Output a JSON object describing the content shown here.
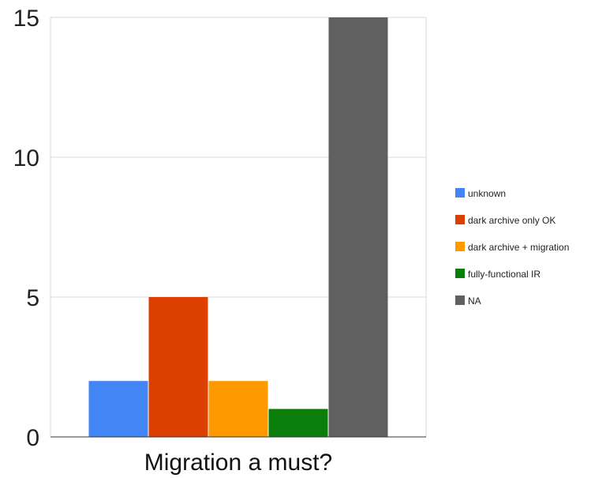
{
  "chart_data": {
    "type": "bar",
    "categories": [
      "Migration a must?"
    ],
    "series": [
      {
        "name": "unknown",
        "values": [
          2
        ],
        "color": "#4285f4"
      },
      {
        "name": "dark archive only OK",
        "values": [
          5
        ],
        "color": "#db4000"
      },
      {
        "name": "dark archive + migration",
        "values": [
          2
        ],
        "color": "#ff9900"
      },
      {
        "name": "fully-functional IR",
        "values": [
          1
        ],
        "color": "#0a7d0a"
      },
      {
        "name": "NA",
        "values": [
          15
        ],
        "color": "#606060"
      }
    ],
    "yticks": [
      "0",
      "5",
      "10",
      "15"
    ],
    "ylim": [
      0,
      15
    ],
    "grid": true,
    "legend_position": "right"
  }
}
